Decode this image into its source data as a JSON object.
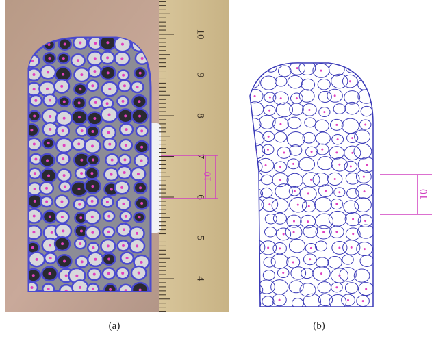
{
  "panels": [
    {
      "label": "(a)",
      "ruler_labels": [
        "10",
        "9",
        "8",
        "7",
        "6",
        "5",
        "4"
      ],
      "scale_label": "10"
    },
    {
      "label": "(b)",
      "scale_label": "10"
    }
  ]
}
